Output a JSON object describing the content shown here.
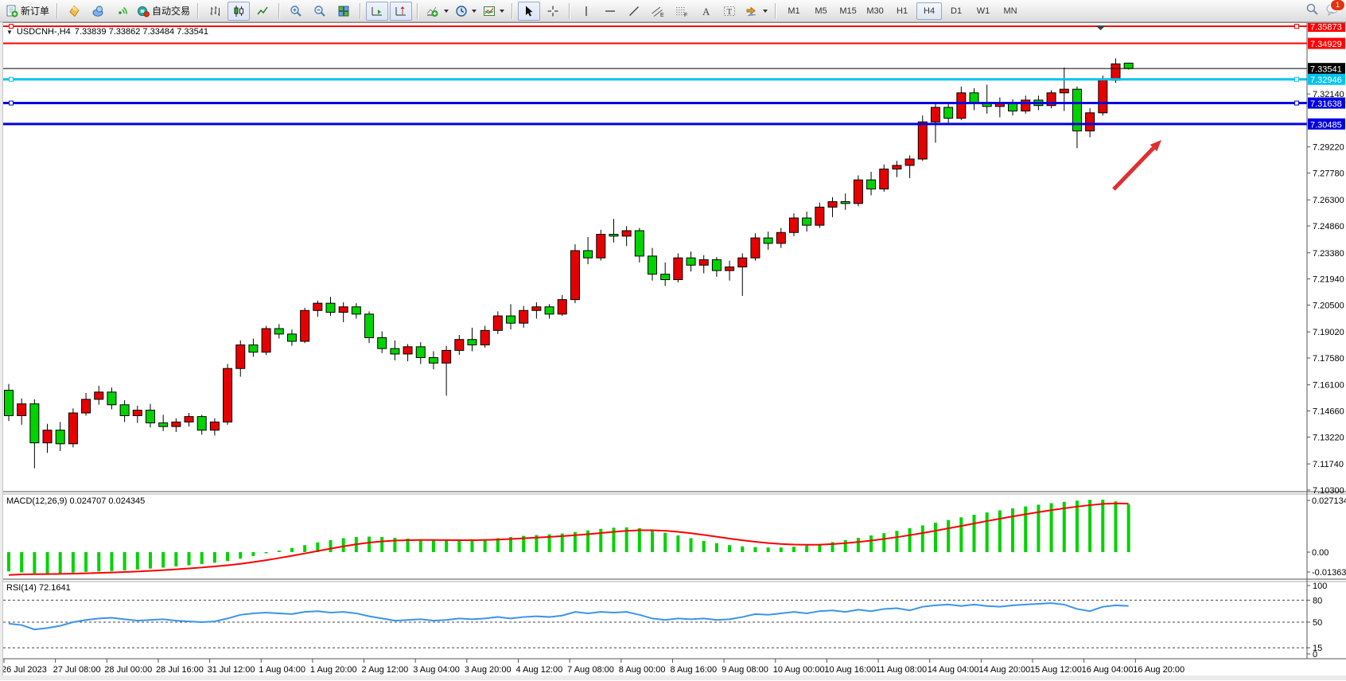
{
  "toolbar": {
    "new_order_label": "新订单",
    "auto_trading_label": "自动交易",
    "timeframes": [
      "M1",
      "M5",
      "M15",
      "M30",
      "H1",
      "H4",
      "D1",
      "W1",
      "MN"
    ],
    "active_timeframe": "H4",
    "notification_count": "1"
  },
  "chart": {
    "symbol_title": "USDCNH-,H4",
    "ohlc_text": "7.33839 7.33862 7.33484 7.33541",
    "open": "7.33839",
    "high": "7.33862",
    "low": "7.33484",
    "close": "7.33541",
    "up_color": "#E60000",
    "down_color": "#00D300",
    "price_axis_ticks": [
      "7.32140",
      "7.29220",
      "7.27780",
      "7.26300",
      "7.24860",
      "7.23380",
      "7.21940",
      "7.20500",
      "7.19020",
      "7.17580",
      "7.16100",
      "7.14660",
      "7.13220",
      "7.11740",
      "7.10300"
    ],
    "price_lines": [
      {
        "price": 7.35873,
        "label": "7.35873",
        "color": "#FF0000",
        "thickness": 2,
        "handles": true
      },
      {
        "price": 7.34929,
        "label": "7.34929",
        "color": "#FF0000",
        "thickness": 2,
        "handles": false
      },
      {
        "price": 7.33541,
        "label": "7.33541",
        "color": "#000000",
        "thickness": 1,
        "handles": false,
        "role": "current-price"
      },
      {
        "price": 7.32946,
        "label": "7.32946",
        "color": "#00C4F0",
        "thickness": 3,
        "handles": true
      },
      {
        "price": 7.31638,
        "label": "7.31638",
        "color": "#0000E0",
        "thickness": 3,
        "handles": true
      },
      {
        "price": 7.30485,
        "label": "7.30485",
        "color": "#0000E0",
        "thickness": 3,
        "handles": false
      }
    ],
    "time_labels": [
      "26 Jul 2023",
      "27 Jul 08:00",
      "28 Jul 00:00",
      "28 Jul 16:00",
      "31 Jul 12:00",
      "1 Aug 04:00",
      "1 Aug 20:00",
      "2 Aug 12:00",
      "3 Aug 04:00",
      "3 Aug 20:00",
      "4 Aug 12:00",
      "7 Aug 08:00",
      "8 Aug 00:00",
      "8 Aug 16:00",
      "9 Aug 08:00",
      "10 Aug 00:00",
      "10 Aug 16:00",
      "11 Aug 08:00",
      "14 Aug 04:00",
      "14 Aug 20:00",
      "15 Aug 12:00",
      "16 Aug 04:00",
      "16 Aug 20:00"
    ]
  },
  "macd": {
    "label": "MACD(12,26,9) 0.024707 0.024345",
    "value": "0.024707",
    "signal_value": "0.024345",
    "axis_ticks": [
      "0.027134",
      "0.00",
      "-0.013633"
    ]
  },
  "rsi": {
    "label": "RSI(14) 72.1641",
    "value": "72.1641",
    "axis_ticks": [
      "100",
      "80",
      "50",
      "15",
      "0"
    ]
  },
  "arrow": {
    "color": "#E02F2F",
    "direction": "up-right"
  },
  "chart_data": [
    {
      "type": "candlestick",
      "symbol": "USDCNH",
      "timeframe": "H4",
      "note": "OHLC per bar, red=up green=down (CN convention)",
      "ohlc": [
        [
          7.158,
          7.1615,
          7.141,
          7.144
        ],
        [
          7.144,
          7.1535,
          7.139,
          7.1505
        ],
        [
          7.1505,
          7.153,
          7.115,
          7.129
        ],
        [
          7.129,
          7.1395,
          7.1235,
          7.136
        ],
        [
          7.136,
          7.1405,
          7.1245,
          7.1285
        ],
        [
          7.1285,
          7.148,
          7.1265,
          7.1455
        ],
        [
          7.1455,
          7.1565,
          7.144,
          7.153
        ],
        [
          7.153,
          7.1605,
          7.15,
          7.157
        ],
        [
          7.157,
          7.1595,
          7.1475,
          7.15
        ],
        [
          7.15,
          7.1525,
          7.1405,
          7.144
        ],
        [
          7.144,
          7.1495,
          7.14,
          7.147
        ],
        [
          7.147,
          7.1505,
          7.1375,
          7.14
        ],
        [
          7.14,
          7.1445,
          7.1355,
          7.138
        ],
        [
          7.138,
          7.1425,
          7.135,
          7.1405
        ],
        [
          7.1405,
          7.1455,
          7.138,
          7.1435
        ],
        [
          7.1435,
          7.1445,
          7.1335,
          7.136
        ],
        [
          7.136,
          7.1425,
          7.133,
          7.1405
        ],
        [
          7.1405,
          7.1725,
          7.139,
          7.17
        ],
        [
          7.17,
          7.1855,
          7.1655,
          7.183
        ],
        [
          7.183,
          7.1865,
          7.1765,
          7.179
        ],
        [
          7.179,
          7.1935,
          7.1775,
          7.192
        ],
        [
          7.192,
          7.1945,
          7.1865,
          7.189
        ],
        [
          7.189,
          7.1915,
          7.1825,
          7.185
        ],
        [
          7.185,
          7.2035,
          7.184,
          7.202
        ],
        [
          7.202,
          7.2075,
          7.1985,
          7.206
        ],
        [
          7.206,
          7.2095,
          7.199,
          7.201
        ],
        [
          7.201,
          7.2065,
          7.1955,
          7.204
        ],
        [
          7.204,
          7.206,
          7.1975,
          7.2
        ],
        [
          7.2,
          7.2015,
          7.184,
          7.187
        ],
        [
          7.187,
          7.1905,
          7.1785,
          7.181
        ],
        [
          7.181,
          7.1855,
          7.1745,
          7.178
        ],
        [
          7.178,
          7.1835,
          7.174,
          7.182
        ],
        [
          7.182,
          7.1845,
          7.1725,
          7.176
        ],
        [
          7.176,
          7.1795,
          7.1695,
          7.173
        ],
        [
          7.173,
          7.1825,
          7.155,
          7.18
        ],
        [
          7.18,
          7.1885,
          7.1775,
          7.186
        ],
        [
          7.186,
          7.1925,
          7.1795,
          7.183
        ],
        [
          7.183,
          7.1935,
          7.1815,
          7.191
        ],
        [
          7.191,
          7.2015,
          7.189,
          7.199
        ],
        [
          7.199,
          7.2055,
          7.1915,
          7.195
        ],
        [
          7.195,
          7.2045,
          7.1925,
          7.202
        ],
        [
          7.202,
          7.2065,
          7.1975,
          7.204
        ],
        [
          7.204,
          7.2055,
          7.1975,
          7.2
        ],
        [
          7.2,
          7.2105,
          7.199,
          7.208
        ],
        [
          7.208,
          7.2385,
          7.206,
          7.235
        ],
        [
          7.235,
          7.2425,
          7.2275,
          7.231
        ],
        [
          7.231,
          7.2465,
          7.2295,
          7.244
        ],
        [
          7.244,
          7.2525,
          7.2395,
          7.243
        ],
        [
          7.243,
          7.2485,
          7.2375,
          7.246
        ],
        [
          7.246,
          7.2475,
          7.2285,
          7.232
        ],
        [
          7.232,
          7.2365,
          7.2185,
          7.222
        ],
        [
          7.222,
          7.2285,
          7.2155,
          7.219
        ],
        [
          7.219,
          7.2335,
          7.2175,
          7.231
        ],
        [
          7.231,
          7.2345,
          7.2235,
          7.227
        ],
        [
          7.227,
          7.2325,
          7.2225,
          7.23
        ],
        [
          7.23,
          7.2315,
          7.2205,
          7.224
        ],
        [
          7.224,
          7.2295,
          7.2185,
          7.226
        ],
        [
          7.226,
          7.2335,
          7.21,
          7.231
        ],
        [
          7.231,
          7.2445,
          7.2295,
          7.242
        ],
        [
          7.242,
          7.2455,
          7.2355,
          7.239
        ],
        [
          7.239,
          7.2475,
          7.2365,
          7.245
        ],
        [
          7.245,
          7.2555,
          7.243,
          7.253
        ],
        [
          7.253,
          7.2565,
          7.2455,
          7.249
        ],
        [
          7.249,
          7.2615,
          7.2475,
          7.259
        ],
        [
          7.259,
          7.2645,
          7.2535,
          7.262
        ],
        [
          7.262,
          7.2665,
          7.2575,
          7.261
        ],
        [
          7.261,
          7.2765,
          7.2595,
          7.274
        ],
        [
          7.274,
          7.2785,
          7.2655,
          7.269
        ],
        [
          7.269,
          7.2825,
          7.2675,
          7.28
        ],
        [
          7.28,
          7.2845,
          7.2755,
          7.282
        ],
        [
          7.282,
          7.2875,
          7.275,
          7.2855
        ],
        [
          7.2855,
          7.3095,
          7.2845,
          7.306
        ],
        [
          7.306,
          7.3165,
          7.2945,
          7.314
        ],
        [
          7.314,
          7.317,
          7.3045,
          7.308
        ],
        [
          7.308,
          7.3255,
          7.307,
          7.322
        ],
        [
          7.322,
          7.3245,
          7.3125,
          7.316
        ],
        [
          7.316,
          7.3265,
          7.3105,
          7.3145
        ],
        [
          7.3145,
          7.3195,
          7.3085,
          7.3165
        ],
        [
          7.3165,
          7.3185,
          7.3095,
          7.312
        ],
        [
          7.312,
          7.3205,
          7.3105,
          7.318
        ],
        [
          7.318,
          7.3205,
          7.3125,
          7.315
        ],
        [
          7.315,
          7.3235,
          7.3135,
          7.322
        ],
        [
          7.322,
          7.336,
          7.312,
          7.324
        ],
        [
          7.324,
          7.3255,
          7.2915,
          7.301
        ],
        [
          7.301,
          7.3135,
          7.2975,
          7.311
        ],
        [
          7.311,
          7.3315,
          7.3095,
          7.329
        ],
        [
          7.329,
          7.341,
          7.3275,
          7.338
        ],
        [
          7.33839,
          7.33862,
          7.33484,
          7.33541
        ]
      ]
    },
    {
      "type": "bar",
      "name": "MACD(12,26,9)",
      "current": 0.024707,
      "signal_current": 0.024345,
      "color": "#00D300",
      "signal_color": "#FF0000",
      "y_ticks": [
        0.027134,
        0,
        -0.013633
      ],
      "values": [
        -0.01,
        -0.0105,
        -0.011,
        -0.0112,
        -0.011,
        -0.0106,
        -0.0102,
        -0.01,
        -0.0098,
        -0.0095,
        -0.009,
        -0.0085,
        -0.008,
        -0.0074,
        -0.0068,
        -0.0062,
        -0.0055,
        -0.0046,
        -0.0034,
        -0.002,
        -0.0006,
        0.0008,
        0.0022,
        0.0036,
        0.005,
        0.0062,
        0.0072,
        0.0078,
        0.008,
        0.0078,
        0.0074,
        0.007,
        0.0066,
        0.0062,
        0.006,
        0.006,
        0.0062,
        0.0066,
        0.0072,
        0.0078,
        0.0084,
        0.0088,
        0.0092,
        0.0096,
        0.0104,
        0.0112,
        0.012,
        0.0126,
        0.0128,
        0.0124,
        0.0114,
        0.01,
        0.0086,
        0.0072,
        0.0058,
        0.0046,
        0.0036,
        0.003,
        0.0026,
        0.0024,
        0.0024,
        0.0028,
        0.0034,
        0.0042,
        0.0052,
        0.0062,
        0.0074,
        0.0086,
        0.0098,
        0.011,
        0.0124,
        0.0138,
        0.0152,
        0.0166,
        0.018,
        0.0193,
        0.0205,
        0.0216,
        0.0226,
        0.0236,
        0.0245,
        0.0253,
        0.026,
        0.0266,
        0.027,
        0.0271,
        0.0262,
        0.0247
      ]
    },
    {
      "type": "line",
      "name": "RSI(14)",
      "current": 72.1641,
      "range": [
        0,
        100
      ],
      "levels": [
        80,
        50,
        15
      ],
      "color": "#3B94E8",
      "values": [
        48,
        46,
        40,
        42,
        45,
        50,
        53,
        55,
        56,
        54,
        52,
        53,
        54,
        52,
        51,
        50,
        51,
        55,
        60,
        62,
        63,
        62,
        61,
        64,
        65,
        63,
        64,
        62,
        58,
        55,
        52,
        53,
        54,
        52,
        53,
        55,
        54,
        55,
        57,
        55,
        57,
        58,
        57,
        59,
        64,
        62,
        64,
        63,
        64,
        60,
        55,
        53,
        55,
        54,
        55,
        53,
        54,
        57,
        61,
        60,
        62,
        64,
        62,
        65,
        66,
        64,
        67,
        65,
        68,
        69,
        66,
        71,
        73,
        74,
        72,
        74,
        72,
        71,
        73,
        74,
        75,
        76,
        74,
        68,
        65,
        71,
        73,
        72.16
      ]
    }
  ]
}
